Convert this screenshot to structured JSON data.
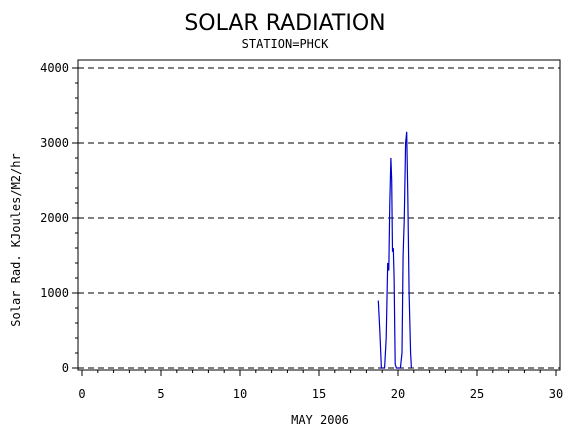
{
  "chart_data": {
    "type": "line",
    "title": "SOLAR RADIATION",
    "subtitle": "STATION=PHCK",
    "xlabel": "MAY 2006",
    "ylabel": "Solar Rad. KJoules/M2/hr",
    "xlim": [
      0,
      30
    ],
    "ylim": [
      0,
      4000
    ],
    "x_ticks": [
      0,
      5,
      10,
      15,
      20,
      25,
      30
    ],
    "y_ticks": [
      0,
      1000,
      2000,
      3000,
      4000
    ],
    "grid": "horizontal dashed",
    "series_color": "#0000cc",
    "series": [
      {
        "x": [
          18.75,
          18.85,
          18.95,
          19.05,
          19.15,
          19.25,
          19.35,
          19.42,
          19.48,
          19.55,
          19.6,
          19.65,
          19.7,
          19.75,
          19.82,
          19.9,
          19.97,
          20.05,
          20.15,
          20.25,
          20.32,
          20.4,
          20.48,
          20.55,
          20.62,
          20.7,
          20.8,
          20.85
        ],
        "y": [
          900,
          500,
          0,
          0,
          0,
          400,
          1400,
          1300,
          2200,
          2800,
          2500,
          1550,
          1600,
          1200,
          50,
          0,
          0,
          0,
          0,
          200,
          1500,
          2000,
          3000,
          3150,
          2300,
          1000,
          200,
          0
        ]
      }
    ]
  }
}
